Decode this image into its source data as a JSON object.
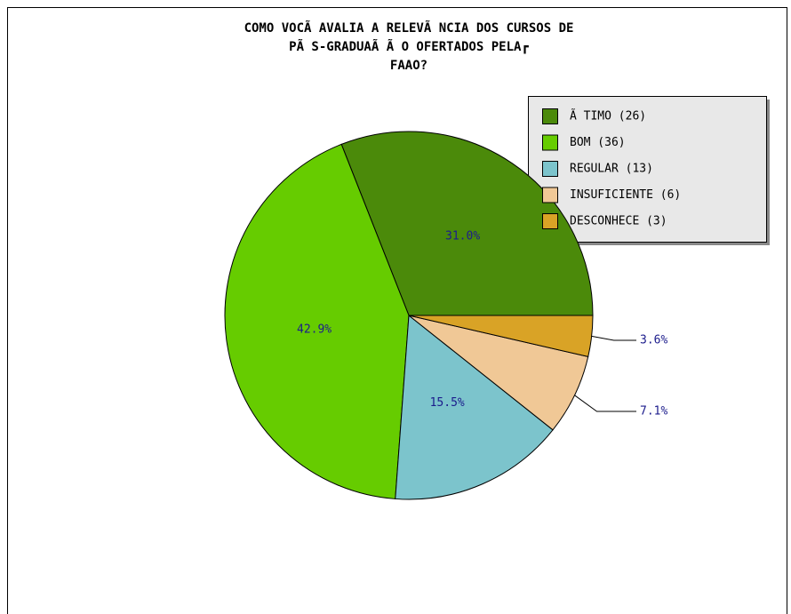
{
  "chart_data": {
    "type": "pie",
    "title": [
      "COMO VOCÃ  AVALIA A RELEVÃ NCIA DOS CURSOS DE",
      "PÃ S-GRADUAÃ Ã O OFERTADOS PELA┏",
      "FAAO?"
    ],
    "categories": [
      "Ã TIMO (26)",
      "BOM (36)",
      "REGULAR (13)",
      "INSUFICIENTE (6)",
      "DESCONHECE (3)"
    ],
    "values": [
      31.0,
      42.9,
      15.5,
      7.1,
      3.6
    ],
    "value_labels": [
      "31.0%",
      "42.9%",
      "15.5%",
      "7.1%",
      "3.6%"
    ],
    "colors": [
      "#4b8a0a",
      "#66cc00",
      "#7cc4cc",
      "#f0c896",
      "#d9a326"
    ],
    "legend": "upper right"
  }
}
